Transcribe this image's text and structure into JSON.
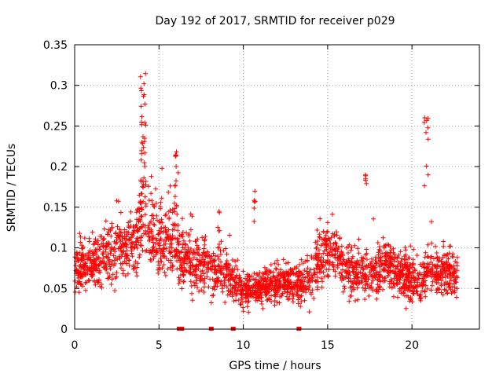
{
  "chart_data": {
    "type": "scatter",
    "title": "Day 192 of 2017, SRMTID for receiver p029",
    "xlabel": "GPS time / hours",
    "ylabel": "SRMTID / TECUs",
    "xlim": [
      0,
      24
    ],
    "ylim": [
      0,
      0.35
    ],
    "grid": true,
    "marker": "+",
    "marker_color": "#ff0000",
    "x_ticks": [
      0,
      5,
      10,
      15,
      20
    ],
    "x_tick_labels": [
      "0",
      "5",
      "10",
      "15",
      "20"
    ],
    "y_ticks": [
      0,
      0.05,
      0.1,
      0.15,
      0.2,
      0.25,
      0.3,
      0.35
    ],
    "y_tick_labels": [
      "0",
      "0.05",
      "0.1",
      "0.15",
      "0.2",
      "0.25",
      "0.3",
      "0.35"
    ],
    "baseline_markers_x": [
      6.2,
      6.35,
      8.1,
      9.4,
      13.3
    ],
    "trend_profile": {
      "x": [
        0,
        1,
        2,
        3,
        3.6,
        4.0,
        4.3,
        4.8,
        5.5,
        6.0,
        6.2,
        6.6,
        7.0,
        8.0,
        9.0,
        9.5,
        10.0,
        10.5,
        11.0,
        12.0,
        13.0,
        13.5,
        14.0,
        14.5,
        15.0,
        15.5,
        16.0,
        17.0,
        18.0,
        18.5,
        19.0,
        20.0,
        20.5,
        21.0,
        21.5,
        22.0,
        22.7
      ],
      "y": [
        0.075,
        0.08,
        0.09,
        0.1,
        0.11,
        0.14,
        0.13,
        0.11,
        0.11,
        0.115,
        0.09,
        0.085,
        0.08,
        0.075,
        0.065,
        0.06,
        0.045,
        0.05,
        0.05,
        0.055,
        0.06,
        0.055,
        0.065,
        0.085,
        0.1,
        0.09,
        0.075,
        0.065,
        0.075,
        0.08,
        0.07,
        0.06,
        0.06,
        0.075,
        0.07,
        0.07,
        0.065
      ],
      "spread": [
        0.02,
        0.02,
        0.025,
        0.025,
        0.03,
        0.035,
        0.035,
        0.03,
        0.03,
        0.03,
        0.025,
        0.025,
        0.025,
        0.02,
        0.02,
        0.02,
        0.015,
        0.015,
        0.015,
        0.015,
        0.015,
        0.015,
        0.02,
        0.025,
        0.025,
        0.02,
        0.02,
        0.02,
        0.02,
        0.02,
        0.02,
        0.02,
        0.02,
        0.02,
        0.02,
        0.02,
        0.02
      ]
    },
    "outlier_clusters": [
      {
        "x_range": [
          3.9,
          4.25
        ],
        "y_range": [
          0.18,
          0.32
        ],
        "count": 30
      },
      {
        "x_range": [
          5.95,
          6.15
        ],
        "y_range": [
          0.17,
          0.22
        ],
        "count": 10
      },
      {
        "x_range": [
          17.2,
          17.35
        ],
        "y_range": [
          0.17,
          0.19
        ],
        "count": 5
      },
      {
        "x_range": [
          20.7,
          21.0
        ],
        "y_range": [
          0.17,
          0.263
        ],
        "count": 10
      },
      {
        "x_range": [
          10.6,
          10.7
        ],
        "y_range": [
          0.13,
          0.17
        ],
        "count": 6
      },
      {
        "x_range": [
          8.4,
          8.6
        ],
        "y_range": [
          0.12,
          0.155
        ],
        "count": 5
      }
    ]
  }
}
